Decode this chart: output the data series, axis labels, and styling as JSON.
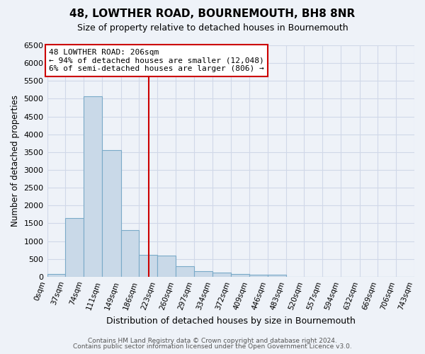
{
  "title": "48, LOWTHER ROAD, BOURNEMOUTH, BH8 8NR",
  "subtitle": "Size of property relative to detached houses in Bournemouth",
  "xlabel": "Distribution of detached houses by size in Bournemouth",
  "ylabel": "Number of detached properties",
  "footnote1": "Contains HM Land Registry data © Crown copyright and database right 2024.",
  "footnote2": "Contains public sector information licensed under the Open Government Licence v3.0.",
  "bin_edges": [
    0,
    37,
    74,
    111,
    149,
    186,
    223,
    260,
    297,
    334,
    372,
    409,
    446,
    483,
    520,
    557,
    594,
    632,
    669,
    706,
    743
  ],
  "bin_labels": [
    "0sqm",
    "37sqm",
    "74sqm",
    "111sqm",
    "149sqm",
    "186sqm",
    "223sqm",
    "260sqm",
    "297sqm",
    "334sqm",
    "372sqm",
    "409sqm",
    "446sqm",
    "483sqm",
    "520sqm",
    "557sqm",
    "594sqm",
    "632sqm",
    "669sqm",
    "706sqm",
    "743sqm"
  ],
  "bar_values": [
    80,
    1650,
    5060,
    3560,
    1300,
    620,
    590,
    300,
    160,
    110,
    80,
    50,
    50,
    0,
    0,
    0,
    0,
    0,
    0,
    0
  ],
  "bar_color": "#c9d9e8",
  "bar_edge_color": "#7aaac8",
  "property_value": 206,
  "vline_color": "#cc0000",
  "annotation_line1": "48 LOWTHER ROAD: 206sqm",
  "annotation_line2": "← 94% of detached houses are smaller (12,048)",
  "annotation_line3": "6% of semi-detached houses are larger (806) →",
  "annotation_box_color": "#ffffff",
  "annotation_box_edge": "#cc0000",
  "ylim": [
    0,
    6500
  ],
  "yticks": [
    0,
    500,
    1000,
    1500,
    2000,
    2500,
    3000,
    3500,
    4000,
    4500,
    5000,
    5500,
    6000,
    6500
  ],
  "grid_color": "#d0d8e8",
  "bg_color": "#eef2f8"
}
